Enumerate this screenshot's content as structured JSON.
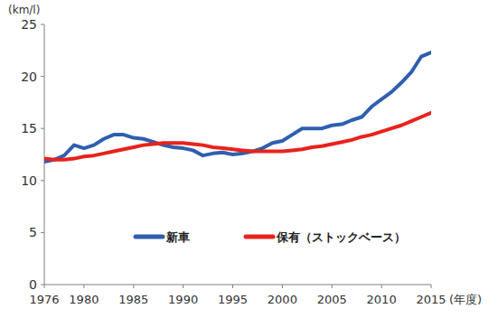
{
  "chart_data": {
    "type": "line",
    "y_label": "(km/l)",
    "x_label": "(年度)",
    "x": [
      1976,
      1977,
      1978,
      1979,
      1980,
      1981,
      1982,
      1983,
      1984,
      1985,
      1986,
      1987,
      1988,
      1989,
      1990,
      1991,
      1992,
      1993,
      1994,
      1995,
      1996,
      1997,
      1998,
      1999,
      2000,
      2001,
      2002,
      2003,
      2004,
      2005,
      2006,
      2007,
      2008,
      2009,
      2010,
      2011,
      2012,
      2013,
      2014,
      2015
    ],
    "series": [
      {
        "name": "新車",
        "color": "#2f5fae",
        "values": [
          11.8,
          12.0,
          12.4,
          13.4,
          13.1,
          13.4,
          14.0,
          14.4,
          14.4,
          14.1,
          14.0,
          13.7,
          13.4,
          13.2,
          13.1,
          12.9,
          12.4,
          12.6,
          12.7,
          12.5,
          12.6,
          12.8,
          13.1,
          13.6,
          13.8,
          14.4,
          15.0,
          15.0,
          15.0,
          15.3,
          15.4,
          15.8,
          16.1,
          17.1,
          17.8,
          18.5,
          19.4,
          20.4,
          21.9,
          22.3
        ]
      },
      {
        "name": "保有（ストックベース）",
        "color": "#e8221c",
        "values": [
          12.1,
          12.0,
          12.0,
          12.1,
          12.3,
          12.4,
          12.6,
          12.8,
          13.0,
          13.2,
          13.4,
          13.5,
          13.6,
          13.6,
          13.6,
          13.5,
          13.4,
          13.2,
          13.1,
          13.0,
          12.9,
          12.8,
          12.8,
          12.8,
          12.8,
          12.9,
          13.0,
          13.2,
          13.3,
          13.5,
          13.7,
          13.9,
          14.2,
          14.4,
          14.7,
          15.0,
          15.3,
          15.7,
          16.1,
          16.5
        ]
      }
    ],
    "xlim": [
      1976,
      2015
    ],
    "xticks": [
      1976,
      1980,
      1985,
      1990,
      1995,
      2000,
      2005,
      2010,
      2015
    ],
    "ylim": [
      0,
      25
    ],
    "yticks": [
      0,
      5,
      10,
      15,
      20,
      25
    ],
    "grid": false,
    "legend": "center"
  }
}
